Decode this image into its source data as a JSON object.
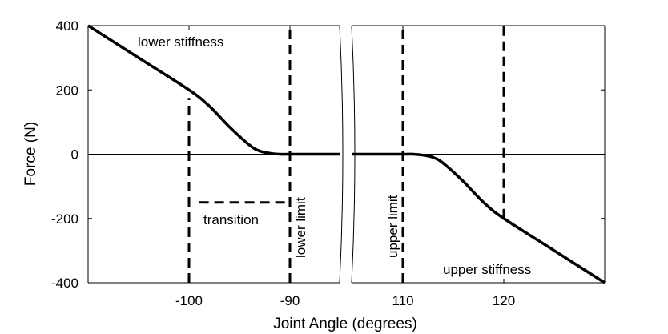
{
  "chart_data": {
    "type": "line",
    "title": "",
    "xlabel": "Joint Angle (degrees)",
    "ylabel": "Force (N)",
    "ylim": [
      -400,
      400
    ],
    "broken_x_axis": true,
    "panels": [
      {
        "xlim": [
          -110,
          -85
        ],
        "xticks": [
          -100,
          -90
        ]
      },
      {
        "xlim": [
          105,
          130
        ],
        "xticks": [
          110,
          120
        ]
      }
    ],
    "yticks": [
      400,
      200,
      0,
      -200,
      -400
    ],
    "ytick_labels": [
      "400",
      "200",
      "0",
      "-200",
      "-400"
    ],
    "xtick_labels": [
      "-100",
      "-90",
      "110",
      "120"
    ],
    "series": [
      {
        "x": [
          -110,
          -105,
          -100,
          -98,
          -96,
          -94,
          -93,
          -92,
          -91,
          -90,
          -85,
          105,
          110,
          111,
          112,
          113,
          114,
          116,
          118,
          120,
          125,
          130
        ],
        "y": [
          400,
          300,
          200,
          150,
          85,
          28,
          10,
          3,
          0,
          0,
          0,
          0,
          0,
          0,
          -3,
          -10,
          -28,
          -85,
          -150,
          -200,
          -300,
          -400
        ]
      }
    ],
    "reference_lines": [
      {
        "type": "vertical",
        "x": -100,
        "y_from": -400,
        "y_to": 175,
        "style": "dashed"
      },
      {
        "type": "vertical",
        "x": -90,
        "y_from": -400,
        "y_to": 400,
        "style": "dashed"
      },
      {
        "type": "vertical",
        "x": 110,
        "y_from": -400,
        "y_to": 400,
        "style": "dashed"
      },
      {
        "type": "vertical",
        "x": 120,
        "y_from": -200,
        "y_to": 400,
        "style": "dashed"
      },
      {
        "type": "horizontal",
        "y": 0,
        "style": "solid-thin"
      },
      {
        "type": "horizontal",
        "y": -150,
        "x_from": -99,
        "x_to": -90,
        "style": "dashed"
      }
    ],
    "annotations": [
      "lower stiffness",
      "transition",
      "lower limit",
      "upper limit",
      "upper stiffness"
    ]
  }
}
